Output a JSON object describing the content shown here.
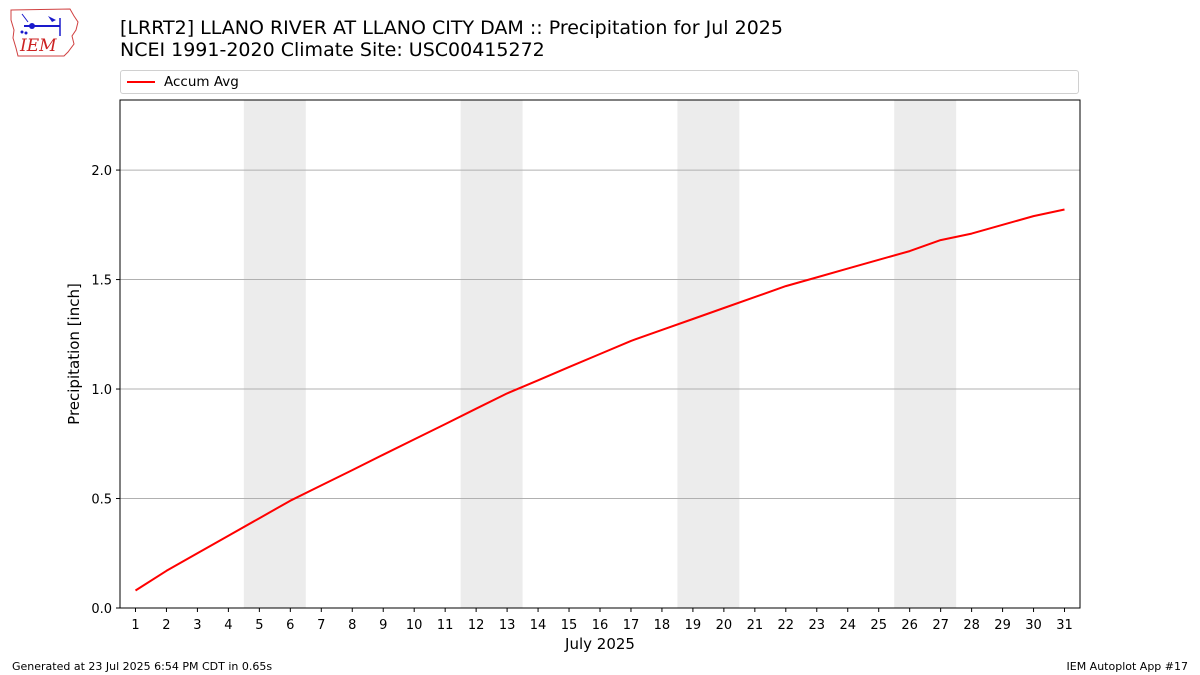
{
  "logo": {
    "text": "IEM",
    "icon": "iem-iowa-logo"
  },
  "header": {
    "title_line1": "[LRRT2] LLANO RIVER AT LLANO CITY DAM :: Precipitation for Jul 2025",
    "title_line2": "NCEI 1991-2020 Climate Site: USC00415272"
  },
  "footer": {
    "generated": "Generated at 23 Jul 2025 6:54 PM CDT in 0.65s",
    "app": "IEM Autoplot App #17"
  },
  "colors": {
    "series": "#ff0000",
    "weekend_band": "#ececec",
    "grid": "#b0b0b0"
  },
  "chart_data": {
    "type": "line",
    "xlabel": "July 2025",
    "ylabel": "Precipitation [inch]",
    "ylim": [
      0,
      2.32
    ],
    "xlim": [
      0.5,
      31.5
    ],
    "yticks": [
      "0.0",
      "0.5",
      "1.0",
      "1.5",
      "2.0"
    ],
    "ytick_values": [
      0,
      0.5,
      1.0,
      1.5,
      2.0
    ],
    "grid": "horizontal",
    "legend": "top",
    "x": [
      1,
      2,
      3,
      4,
      5,
      6,
      7,
      8,
      9,
      10,
      11,
      12,
      13,
      14,
      15,
      16,
      17,
      18,
      19,
      20,
      21,
      22,
      23,
      24,
      25,
      26,
      27,
      28,
      29,
      30,
      31
    ],
    "weekend_bands": [
      [
        5,
        6
      ],
      [
        12,
        13
      ],
      [
        19,
        20
      ],
      [
        26,
        27
      ]
    ],
    "series": [
      {
        "name": "Accum Avg",
        "values": [
          0.08,
          0.17,
          0.25,
          0.33,
          0.41,
          0.49,
          0.56,
          0.63,
          0.7,
          0.77,
          0.84,
          0.91,
          0.98,
          1.04,
          1.1,
          1.16,
          1.22,
          1.27,
          1.32,
          1.37,
          1.42,
          1.47,
          1.51,
          1.55,
          1.59,
          1.63,
          1.68,
          1.71,
          1.75,
          1.79,
          1.82
        ]
      }
    ]
  }
}
